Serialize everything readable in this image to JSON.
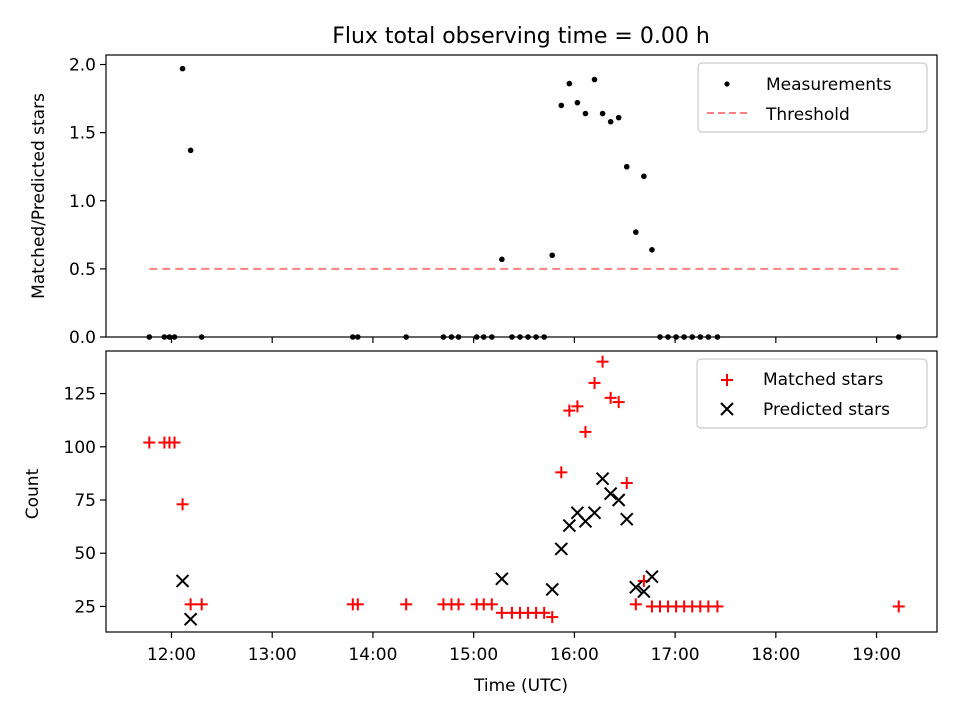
{
  "chart_data": [
    {
      "type": "scatter",
      "title": "Flux total observing time = 0.00 h",
      "xlabel": "",
      "ylabel": "Matched/Predicted stars",
      "xlim": [
        11.35,
        19.6
      ],
      "ylim": [
        0.0,
        2.07
      ],
      "yticks": [
        0.0,
        0.5,
        1.0,
        1.5,
        2.0
      ],
      "ytick_labels": [
        "0.0",
        "0.5",
        "1.0",
        "1.5",
        "2.0"
      ],
      "xticks": [
        12,
        13,
        14,
        15,
        16,
        17,
        18,
        19
      ],
      "legend_position": "top-right",
      "series": [
        {
          "name": "Measurements",
          "marker": "dot",
          "color": "#000000",
          "x": [
            11.78,
            11.93,
            11.98,
            12.03,
            12.11,
            12.19,
            12.3,
            13.8,
            13.85,
            14.33,
            14.7,
            14.78,
            14.85,
            15.03,
            15.1,
            15.18,
            15.28,
            15.38,
            15.46,
            15.54,
            15.62,
            15.7,
            15.78,
            15.87,
            15.95,
            16.03,
            16.11,
            16.2,
            16.28,
            16.36,
            16.44,
            16.52,
            16.61,
            16.69,
            16.77,
            16.85,
            16.93,
            17.01,
            17.09,
            17.17,
            17.25,
            17.33,
            17.42,
            19.22
          ],
          "y": [
            0.0,
            0.0,
            0.0,
            0.0,
            1.97,
            1.37,
            0.0,
            0.0,
            0.0,
            0.0,
            0.0,
            0.0,
            0.0,
            0.0,
            0.0,
            0.0,
            0.57,
            0.0,
            0.0,
            0.0,
            0.0,
            0.0,
            0.6,
            1.7,
            1.86,
            1.72,
            1.64,
            1.89,
            1.64,
            1.58,
            1.61,
            1.25,
            0.77,
            1.18,
            0.64,
            0.0,
            0.0,
            0.0,
            0.0,
            0.0,
            0.0,
            0.0,
            0.0,
            0.0
          ]
        },
        {
          "name": "Threshold",
          "marker": "dashed-line",
          "color": "#ff8080",
          "x": [
            11.78,
            19.22
          ],
          "y": [
            0.5,
            0.5
          ]
        }
      ]
    },
    {
      "type": "scatter",
      "title": "",
      "xlabel": "Time (UTC)",
      "ylabel": "Count",
      "xlim": [
        11.35,
        19.6
      ],
      "ylim": [
        13.0,
        145.0
      ],
      "yticks": [
        25,
        50,
        75,
        100,
        125
      ],
      "ytick_labels": [
        "25",
        "50",
        "75",
        "100",
        "125"
      ],
      "xticks": [
        12,
        13,
        14,
        15,
        16,
        17,
        18,
        19
      ],
      "xtick_labels": [
        "12:00",
        "13:00",
        "14:00",
        "15:00",
        "16:00",
        "17:00",
        "18:00",
        "19:00"
      ],
      "legend_position": "top-right",
      "series": [
        {
          "name": "Matched stars",
          "marker": "plus",
          "color": "#ff0000",
          "x": [
            11.78,
            11.93,
            11.98,
            12.03,
            12.11,
            12.19,
            12.3,
            13.8,
            13.85,
            14.33,
            14.7,
            14.78,
            14.85,
            15.03,
            15.1,
            15.18,
            15.28,
            15.38,
            15.46,
            15.54,
            15.62,
            15.7,
            15.78,
            15.87,
            15.95,
            16.03,
            16.11,
            16.2,
            16.28,
            16.36,
            16.44,
            16.52,
            16.61,
            16.69,
            16.77,
            16.85,
            16.93,
            17.01,
            17.09,
            17.17,
            17.25,
            17.33,
            17.42,
            19.22
          ],
          "y": [
            102,
            102,
            102,
            102,
            73,
            26,
            26,
            26,
            26,
            26,
            26,
            26,
            26,
            26,
            26,
            26,
            22,
            22,
            22,
            22,
            22,
            22,
            20,
            88,
            117,
            119,
            107,
            130,
            140,
            123,
            121,
            83,
            26,
            37,
            25,
            25,
            25,
            25,
            25,
            25,
            25,
            25,
            25,
            25
          ]
        },
        {
          "name": "Predicted stars",
          "marker": "x",
          "color": "#000000",
          "x": [
            12.11,
            12.19,
            15.28,
            15.78,
            15.87,
            15.95,
            16.03,
            16.11,
            16.2,
            16.28,
            16.36,
            16.44,
            16.52,
            16.61,
            16.69,
            16.77
          ],
          "y": [
            37,
            19,
            38,
            33,
            52,
            63,
            69,
            65,
            69,
            85,
            78,
            75,
            66,
            34,
            32,
            39
          ]
        }
      ]
    }
  ]
}
